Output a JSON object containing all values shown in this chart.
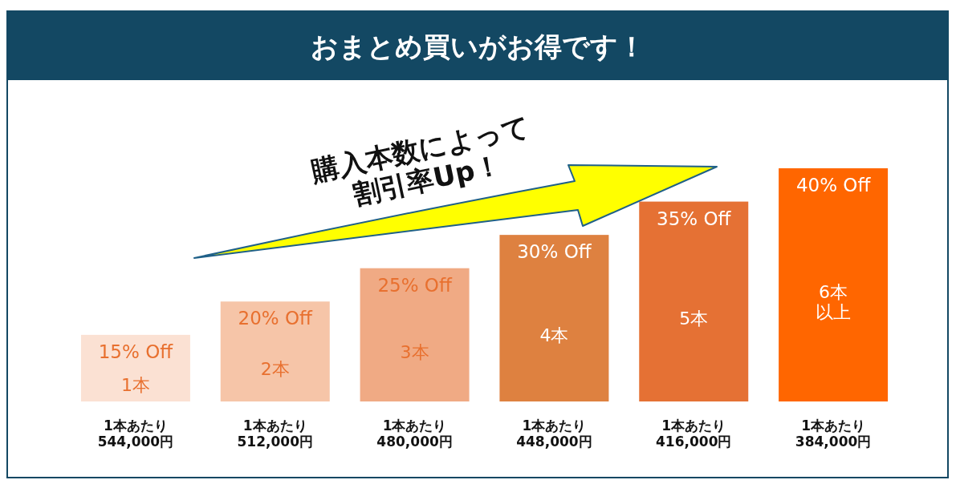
{
  "chart_data": {
    "type": "bar",
    "title": "おまとめ買いがお得です！",
    "ylim": [
      5,
      40
    ],
    "categories": [
      "1本",
      "2本",
      "3本",
      "4本",
      "5本",
      "6本以上"
    ],
    "values": [
      15,
      20,
      25,
      30,
      35,
      40
    ],
    "colors": [
      "#fbe1d3",
      "#f6c5a8",
      "#f0aa84",
      "#de8140",
      "#e57134",
      "#ff6600"
    ],
    "value_labels": [
      "15% Off",
      "20% Off",
      "25% Off",
      "30% Off",
      "35% Off",
      "40% Off"
    ],
    "annotations": [
      "1本あたり\n544,000円",
      "1本あたり\n512,000円",
      "1本あたり\n480,000円",
      "1本あたり\n448,000円",
      "1本あたり\n416,000円",
      "1本あたり\n384,000円",
      "購入本数によって\n割引率Up！"
    ]
  }
}
